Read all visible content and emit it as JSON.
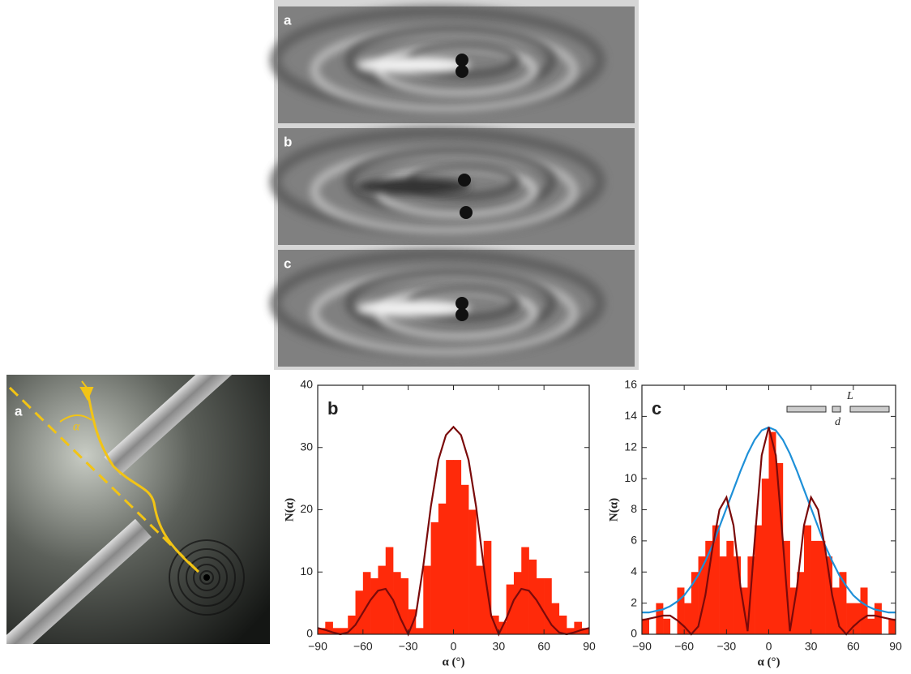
{
  "figure_top": {
    "panels": [
      "a",
      "b",
      "c"
    ]
  },
  "photo": {
    "label": "a",
    "angle_label": "α"
  },
  "chart_data": [
    {
      "type": "histogram",
      "panel_label": "b",
      "xlabel": "α (°)",
      "ylabel": "N(α)",
      "color": "#ff2a0a",
      "bins": [
        -90,
        -85,
        -80,
        -75,
        -70,
        -65,
        -60,
        -55,
        -50,
        -45,
        -40,
        -35,
        -30,
        -25,
        -20,
        -15,
        -10,
        -5,
        0,
        5,
        10,
        15,
        20,
        25,
        30,
        35,
        40,
        45,
        50,
        55,
        60,
        65,
        70,
        75,
        80,
        85,
        90
      ],
      "values": [
        1,
        2,
        1,
        1,
        3,
        7,
        10,
        9,
        11,
        14,
        10,
        9,
        4,
        1,
        11,
        18,
        21,
        28,
        28,
        24,
        20,
        11,
        15,
        3,
        2,
        8,
        10,
        14,
        12,
        9,
        9,
        5,
        3,
        1,
        2,
        1
      ],
      "xlim": [
        -90,
        90
      ],
      "ylim": [
        0,
        40
      ],
      "xticks": [
        {
          "value": -90,
          "label": "−90"
        },
        {
          "value": -60,
          "label": "−60"
        },
        {
          "value": -30,
          "label": "−30"
        },
        0,
        30,
        60,
        90
      ],
      "yticks": [
        0,
        10,
        20,
        30,
        40
      ],
      "curve_x": [
        -90,
        -85,
        -80,
        -75,
        -70,
        -65,
        -60,
        -55,
        -50,
        -45,
        -40,
        -35,
        -30,
        -25,
        -20,
        -15,
        -10,
        -5,
        0,
        5,
        10,
        15,
        20,
        25,
        30,
        35,
        40,
        45,
        50,
        55,
        60,
        65,
        70,
        75,
        80,
        85,
        90
      ],
      "lines": [
        {
          "color": "#7a0a0a",
          "values": [
            1,
            0.7,
            0.3,
            0,
            0.3,
            1.5,
            3.5,
            5.5,
            7,
            7.3,
            5.5,
            2.5,
            0,
            3,
            11,
            20.5,
            28,
            32,
            33.3,
            32,
            28,
            20.5,
            11,
            3,
            0,
            2.5,
            5.5,
            7.3,
            7,
            5.5,
            3.5,
            1.5,
            0.3,
            0,
            0.3,
            0.7,
            1
          ]
        }
      ]
    },
    {
      "type": "histogram",
      "panel_label": "c",
      "xlabel": "α (°)",
      "ylabel": "N(α)",
      "color": "#ff2a0a",
      "bins": [
        -90,
        -85,
        -80,
        -75,
        -70,
        -65,
        -60,
        -55,
        -50,
        -45,
        -40,
        -35,
        -30,
        -25,
        -20,
        -15,
        -10,
        -5,
        0,
        5,
        10,
        15,
        20,
        25,
        30,
        35,
        40,
        45,
        50,
        55,
        60,
        65,
        70,
        75,
        80,
        85,
        90
      ],
      "values": [
        1,
        0,
        2,
        1,
        0,
        3,
        2,
        4,
        5,
        6,
        7,
        5,
        6,
        5,
        3,
        5,
        7,
        10,
        13,
        11,
        6,
        3,
        4,
        7,
        6,
        6,
        5,
        3,
        4,
        2,
        2,
        3,
        1,
        2,
        0,
        1
      ],
      "xlim": [
        -90,
        90
      ],
      "ylim": [
        0,
        16
      ],
      "xticks": [
        {
          "value": -90,
          "label": "−90"
        },
        {
          "value": -60,
          "label": "−60"
        },
        {
          "value": -30,
          "label": "−30"
        },
        0,
        30,
        60,
        90
      ],
      "yticks": [
        0,
        2,
        4,
        6,
        8,
        10,
        12,
        14,
        16
      ],
      "inset_labels": [
        "L",
        "d"
      ],
      "curve_x": [
        -90,
        -85,
        -80,
        -75,
        -70,
        -65,
        -60,
        -55,
        -50,
        -45,
        -40,
        -35,
        -30,
        -25,
        -20,
        -15,
        -10,
        -5,
        0,
        5,
        10,
        15,
        20,
        25,
        30,
        35,
        40,
        45,
        50,
        55,
        60,
        65,
        70,
        75,
        80,
        85,
        90
      ],
      "lines": [
        {
          "color": "#1e90d8",
          "values": [
            1.4,
            1.4,
            1.5,
            1.6,
            1.8,
            2.1,
            2.5,
            3.1,
            3.8,
            4.7,
            5.7,
            6.9,
            8.1,
            9.3,
            10.5,
            11.6,
            12.5,
            13.1,
            13.3,
            13.1,
            12.5,
            11.6,
            10.5,
            9.3,
            8.1,
            6.9,
            5.7,
            4.7,
            3.8,
            3.1,
            2.5,
            2.1,
            1.8,
            1.6,
            1.5,
            1.4,
            1.4
          ]
        },
        {
          "color": "#7a0a0a",
          "values": [
            0.9,
            1,
            1.1,
            1.2,
            1.2,
            0.9,
            0.5,
            0,
            0.5,
            2.5,
            5.5,
            8,
            8.8,
            7,
            3,
            0.2,
            6,
            11.5,
            13.3,
            11.5,
            6,
            0.2,
            3,
            7,
            8.8,
            8,
            5.5,
            2.5,
            0.5,
            0,
            0.5,
            0.9,
            1.2,
            1.2,
            1.1,
            1,
            0.9
          ]
        }
      ]
    }
  ]
}
